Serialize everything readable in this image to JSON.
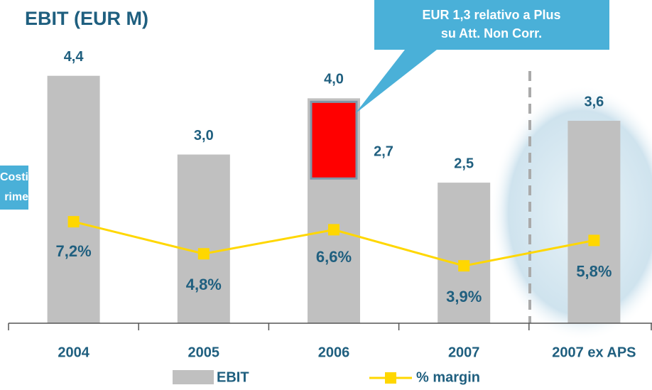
{
  "chart_data": {
    "type": "bar",
    "title": "EBIT (EUR M)",
    "categories": [
      "2004",
      "2005",
      "2006",
      "2007",
      "2007 ex APS"
    ],
    "series": [
      {
        "name": "EBIT",
        "color": "#c0c0c0",
        "values": [
          4.4,
          3.0,
          4.0,
          2.5,
          3.6
        ],
        "value_labels": [
          "4,4",
          "3,0",
          "4,0",
          "2,5",
          "3,6"
        ]
      },
      {
        "name": "% margin",
        "color": "#ffd700",
        "axis": "y2",
        "type": "line",
        "values": [
          7.2,
          4.8,
          6.6,
          3.9,
          5.8
        ],
        "value_labels": [
          "7,2%",
          "4,8%",
          "6,6%",
          "3,9%",
          "5,8%"
        ]
      }
    ],
    "inset": {
      "category": "2006",
      "value": 2.7,
      "label": "2,7",
      "color": "#ff0000"
    },
    "ylim": [
      0,
      4.75
    ],
    "y2lim": [
      -0.4,
      19.6
    ],
    "annotations": {
      "callout": [
        "EUR 1,3 relativo a Plus",
        "su Att. Non Corr."
      ],
      "side_box": [
        "Costi",
        "rime"
      ]
    }
  }
}
